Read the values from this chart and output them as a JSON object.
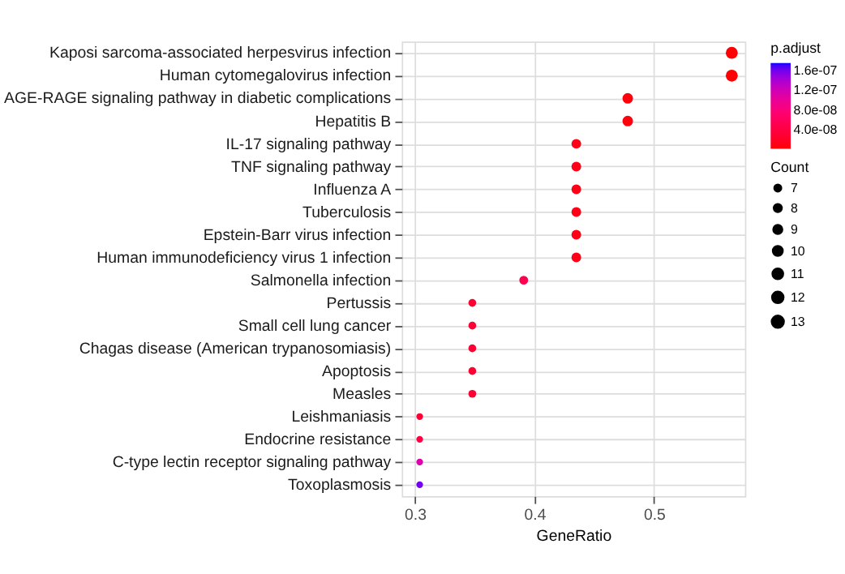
{
  "chart_data": {
    "type": "bubble",
    "orientation": "horizontal",
    "xlabel": "GeneRatio",
    "legend_title": "Count",
    "clabel": "p.adjust",
    "categories": [
      "Kaposi sarcoma-associated herpesvirus infection",
      "Human cytomegalovirus infection",
      "AGE-RAGE signaling pathway in diabetic complications",
      "Hepatitis B",
      "IL-17 signaling pathway",
      "TNF signaling pathway",
      "Influenza A",
      "Tuberculosis",
      "Epstein-Barr virus infection",
      "Human immunodeficiency virus 1 infection",
      "Salmonella infection",
      "Pertussis",
      "Small cell lung cancer",
      "Chagas disease (American trypanosomiasis)",
      "Apoptosis",
      "Measles",
      "Leishmaniasis",
      "Endocrine resistance",
      "C-type lectin receptor signaling pathway",
      "Toxoplasmosis"
    ],
    "values": [
      0.565,
      0.565,
      0.478,
      0.478,
      0.435,
      0.435,
      0.435,
      0.435,
      0.435,
      0.435,
      0.391,
      0.348,
      0.348,
      0.348,
      0.348,
      0.348,
      0.304,
      0.304,
      0.304,
      0.304
    ],
    "sizes": [
      13,
      13,
      11,
      11,
      10,
      10,
      10,
      10,
      10,
      10,
      9,
      8,
      8,
      8,
      8,
      8,
      7,
      7,
      7,
      7
    ],
    "size_legend": [
      7,
      8,
      9,
      10,
      11,
      12,
      13
    ],
    "cvalues": [
      2e-09,
      2e-09,
      5e-09,
      5e-09,
      1e-08,
      1e-08,
      1e-08,
      1e-08,
      1e-08,
      1e-08,
      5e-08,
      3e-08,
      3e-08,
      3e-08,
      3e-08,
      3e-08,
      3e-08,
      4e-08,
      1.1e-07,
      1.6e-07
    ],
    "clim": [
      1e-09,
      1.75e-07
    ],
    "cticks": [
      {
        "value": 4e-08,
        "label": "4.0e-08"
      },
      {
        "value": 8e-08,
        "label": "8.0e-08"
      },
      {
        "value": 1.2e-07,
        "label": "1.2e-07"
      },
      {
        "value": 1.6e-07,
        "label": "1.6e-07"
      }
    ],
    "xlim": [
      0.289,
      0.576
    ],
    "xticks": [
      0.3,
      0.4,
      0.5
    ],
    "grid": true,
    "marker": "circle"
  }
}
